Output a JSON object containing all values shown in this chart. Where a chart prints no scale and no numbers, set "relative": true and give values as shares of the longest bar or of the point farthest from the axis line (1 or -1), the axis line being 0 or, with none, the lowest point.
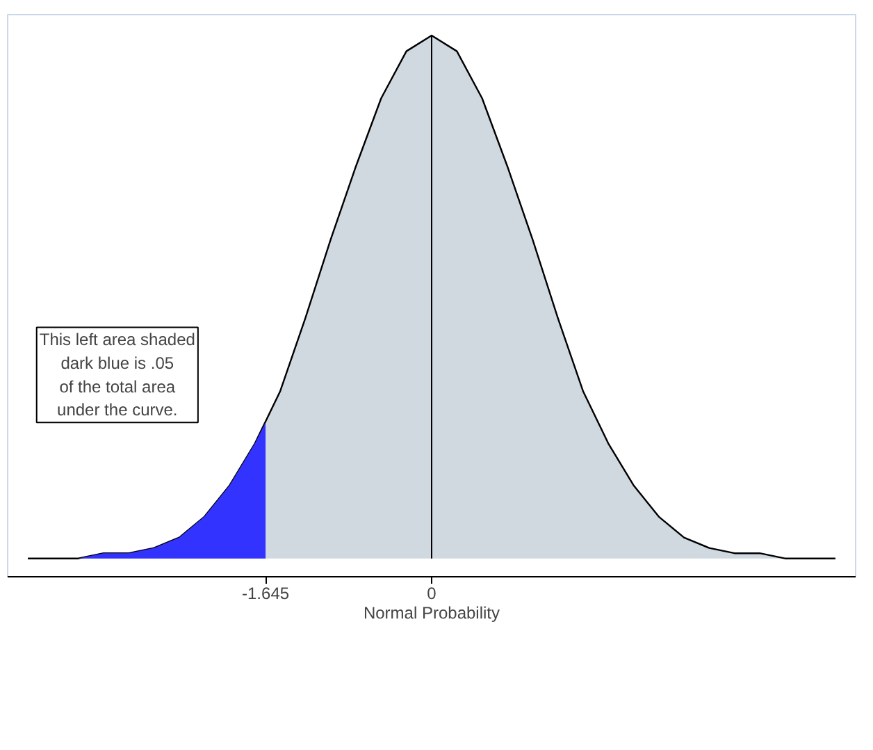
{
  "chart_data": {
    "type": "area",
    "relative": true,
    "xlabel": "Normal Probability",
    "xlim": [
      -4.2,
      4.2
    ],
    "xticks": [
      -1.645,
      0
    ],
    "series": [
      {
        "color": "#d0d8e0",
        "x": [
          -4,
          -3.75,
          -3.5,
          -3.25,
          -3,
          -2.75,
          -2.5,
          -2.25,
          -2,
          -1.75,
          -1.5,
          -1.25,
          -1,
          -0.75,
          -0.5,
          -0.25,
          0,
          0.25,
          0.5,
          0.75,
          1,
          1.25,
          1.5,
          1.75,
          2,
          2.25,
          2.5,
          2.75,
          3,
          3.25,
          3.5,
          3.75,
          4
        ],
        "values": [
          0,
          0,
          0,
          0.01,
          0.01,
          0.02,
          0.04,
          0.08,
          0.14,
          0.22,
          0.32,
          0.46,
          0.61,
          0.75,
          0.88,
          0.97,
          1,
          0.97,
          0.88,
          0.75,
          0.61,
          0.46,
          0.32,
          0.22,
          0.14,
          0.08,
          0.04,
          0.02,
          0.01,
          0.01,
          0,
          0,
          0
        ]
      },
      {
        "color": "#3333ff",
        "x": [
          -4,
          -3.75,
          -3.5,
          -3.25,
          -3,
          -2.75,
          -2.5,
          -2.25,
          -2,
          -1.75,
          -1.645
        ],
        "values": [
          0,
          0,
          0,
          0.01,
          0.01,
          0.02,
          0.04,
          0.08,
          0.14,
          0.22,
          0.26
        ]
      }
    ],
    "ref_lines": [
      {
        "axis": "x",
        "value": 0,
        "label": null,
        "color": "#000000"
      }
    ],
    "annotations": [
      "This left area shaded\ndark blue is .05\nof the total area\nunder the curve."
    ]
  }
}
